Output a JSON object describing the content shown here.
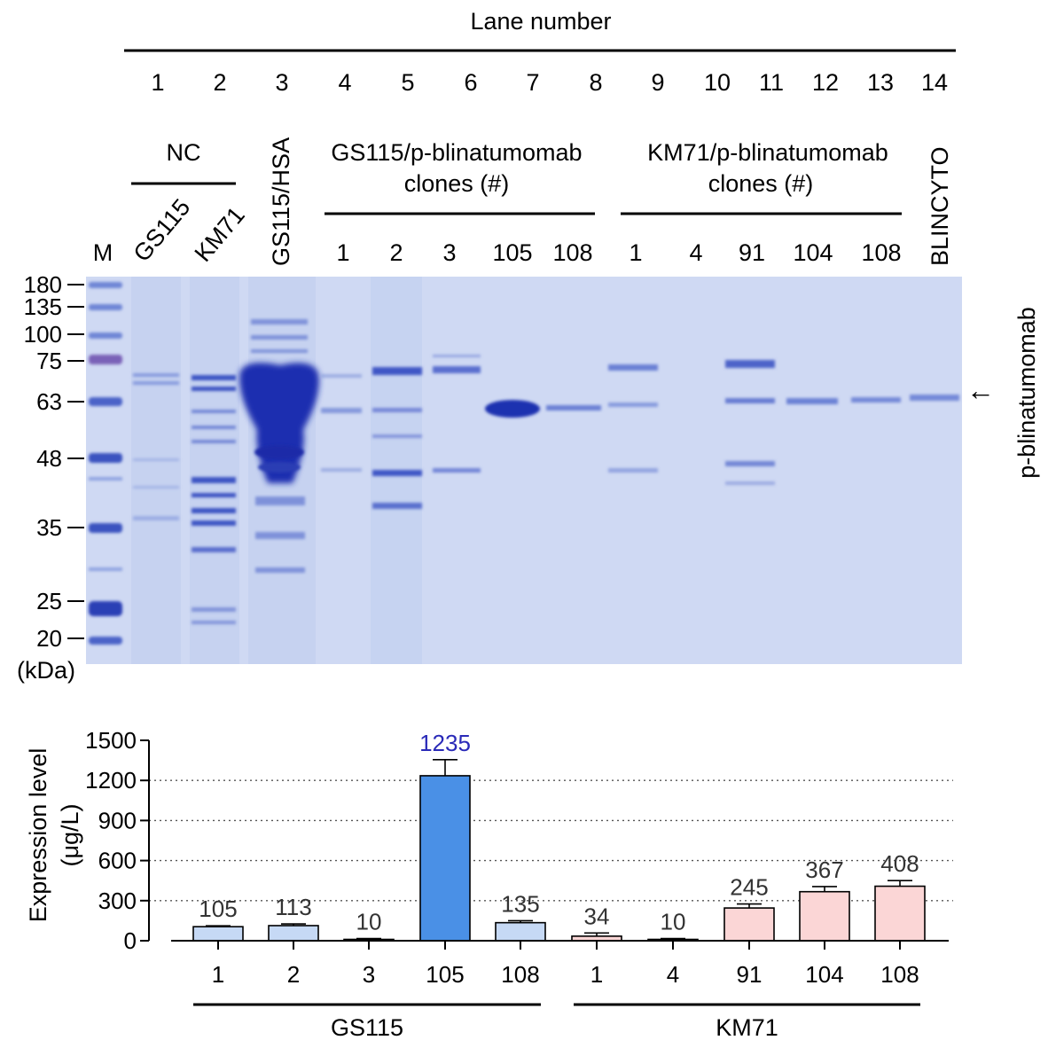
{
  "gel": {
    "header_title": "Lane number",
    "lane_numbers": [
      "1",
      "2",
      "3",
      "4",
      "5",
      "6",
      "7",
      "8",
      "9",
      "10",
      "11",
      "12",
      "13",
      "14"
    ],
    "marker_lane_label": "M",
    "group_nc": {
      "title": "NC",
      "lanes": [
        "GS115",
        "KM71"
      ]
    },
    "group_hsa": {
      "title": "GS115/HSA"
    },
    "group_gs115": {
      "title_line1": "GS115/p-blinatumomab",
      "title_line2": "clones (#)",
      "clones": [
        "1",
        "2",
        "3",
        "105",
        "108"
      ]
    },
    "group_km71": {
      "title_line1": "KM71/p-blinatumomab",
      "title_line2": "clones (#)",
      "clones": [
        "1",
        "4",
        "91",
        "104",
        "108"
      ]
    },
    "group_blincyto": {
      "title": "BLINCYTO"
    },
    "markers_kda": [
      "180",
      "135",
      "100",
      "75",
      "63",
      "48",
      "35",
      "25",
      "20"
    ],
    "kda_unit": "(kDa)",
    "band_label": "p-blinatumomab",
    "arrow_glyph": "←",
    "colors": {
      "background": "#cfd9f3",
      "band": "#2b3fb5"
    }
  },
  "chart_data": {
    "type": "bar",
    "categories": [
      "1",
      "2",
      "3",
      "105",
      "108",
      "1",
      "4",
      "91",
      "104",
      "108"
    ],
    "groups": [
      {
        "name": "GS115",
        "categories": [
          "1",
          "2",
          "3",
          "105",
          "108"
        ]
      },
      {
        "name": "KM71",
        "categories": [
          "1",
          "4",
          "91",
          "104",
          "108"
        ]
      }
    ],
    "values": [
      105,
      113,
      10,
      1235,
      135,
      34,
      10,
      245,
      367,
      408
    ],
    "value_labels": [
      "105",
      "113",
      "10",
      "1235",
      "135",
      "34",
      "10",
      "245",
      "367",
      "408"
    ],
    "error_upper": [
      112,
      126,
      16,
      1355,
      150,
      58,
      16,
      275,
      405,
      450
    ],
    "ylabel_line1": "Expression level",
    "ylabel_line2": "(μg/L)",
    "ylim": [
      0,
      1500
    ],
    "yticks": [
      "0",
      "300",
      "600",
      "900",
      "1200",
      "1500"
    ],
    "grid": "horizontal dotted",
    "colors": {
      "gs115_bar": "#c6d9f5",
      "highlight_bar": "#4a90e6",
      "km71_bar": "#fbd6d6",
      "highlight_label": "#2a2ab8",
      "label": "#333333"
    },
    "highlight_index": 3
  }
}
